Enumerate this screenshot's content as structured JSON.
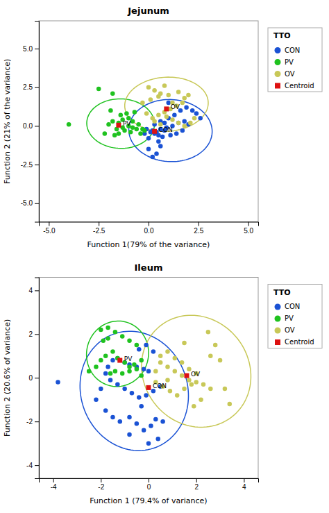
{
  "chart_data": [
    {
      "type": "scatter",
      "title": "Jejunum",
      "xlabel": "Function 1(79% of the variance)",
      "ylabel": "Function 2 (21% of the variance)",
      "xlim": [
        -5.5,
        5.5
      ],
      "ylim": [
        -6.2,
        6.8
      ],
      "xticks": [
        {
          "value": -5.0,
          "label": "-5.0"
        },
        {
          "value": -2.5,
          "label": "-2.5"
        },
        {
          "value": 0.0,
          "label": "0.0"
        },
        {
          "value": 2.5,
          "label": "2.5"
        },
        {
          "value": 5.0,
          "label": "5.0"
        }
      ],
      "yticks": [
        {
          "value": -5.0,
          "label": "-5.0"
        },
        {
          "value": -2.5,
          "label": "-2.5"
        },
        {
          "value": 0.0,
          "label": "0.0"
        },
        {
          "value": 2.5,
          "label": "2.5"
        },
        {
          "value": 5.0,
          "label": "5.0"
        }
      ],
      "grid": false,
      "legend": "right",
      "legend_title": "TTO",
      "series": [
        {
          "name": "CON",
          "color": "#1a52d4",
          "marker": "circle",
          "x": [
            0.2,
            0.4,
            0.6,
            0.3,
            0.8,
            0.5,
            0.1,
            0.9,
            1.2,
            1.5,
            1.8,
            2.0,
            1.0,
            1.3,
            1.6,
            1.9,
            2.2,
            2.4,
            0.7,
            1.1,
            -0.1,
            0.3,
            0.6,
            0.0,
            0.5,
            1.4,
            1.7,
            -0.2,
            0.8,
            1.0,
            0.4,
            0.2,
            0.0,
            0.6,
            2.6
          ],
          "values": [
            -0.3,
            -0.4,
            -0.2,
            -0.5,
            -0.3,
            -0.6,
            -0.4,
            -0.1,
            0.0,
            0.2,
            0.3,
            0.1,
            0.5,
            0.7,
            1.0,
            1.2,
            1.0,
            0.8,
            -0.7,
            -0.6,
            -0.2,
            0.1,
            0.3,
            -0.8,
            -1.0,
            -0.5,
            -0.3,
            -0.5,
            0.2,
            1.5,
            -1.8,
            -2.0,
            -1.5,
            -1.3,
            0.5
          ],
          "ellipse": {
            "cx": 1.1,
            "cy": -0.3,
            "width": 4.2,
            "height": 4.0,
            "angle": -18
          }
        },
        {
          "name": "PV",
          "color": "#1fc21f",
          "marker": "circle",
          "x": [
            -2.0,
            -1.8,
            -1.5,
            -1.3,
            -1.0,
            -0.8,
            -0.5,
            -1.6,
            -1.2,
            -0.9,
            -0.6,
            -1.4,
            -1.1,
            -0.7,
            -1.9,
            -2.2,
            -1.7,
            -0.4,
            -0.2,
            -1.3,
            -4.0,
            -2.5,
            -1.8,
            -1.5,
            -0.3,
            -1.0,
            -0.8
          ],
          "values": [
            0.1,
            0.3,
            0.2,
            0.4,
            0.5,
            0.3,
            0.1,
            -0.2,
            -0.3,
            -0.4,
            -0.2,
            0.7,
            0.8,
            0.9,
            1.0,
            -0.5,
            -0.6,
            -0.5,
            -0.3,
            -0.1,
            0.1,
            2.4,
            2.1,
            -0.5,
            -0.2,
            0.0,
            -0.1
          ],
          "ellipse": {
            "cx": -1.4,
            "cy": 0.15,
            "width": 3.4,
            "height": 3.2,
            "angle": -8
          }
        },
        {
          "name": "OV",
          "color": "#c8c858",
          "marker": "circle",
          "x": [
            0.0,
            0.3,
            0.6,
            1.0,
            1.5,
            0.8,
            0.5,
            1.2,
            1.8,
            2.0,
            0.2,
            0.5,
            0.8,
            1.1,
            1.4,
            1.7,
            0.3,
            0.6,
            -0.1,
            0.9,
            1.2,
            1.5,
            1.8,
            2.1,
            -0.3,
            0.1,
            2.3
          ],
          "values": [
            2.5,
            2.3,
            2.1,
            2.0,
            2.2,
            2.6,
            1.9,
            1.5,
            1.8,
            2.0,
            0.5,
            0.7,
            0.9,
            1.1,
            1.3,
            1.5,
            0.3,
            0.1,
            0.8,
            0.6,
            0.4,
            0.2,
            0.0,
            0.2,
            1.5,
            1.7,
            0.5
          ],
          "ellipse": {
            "cx": 0.9,
            "cy": 1.4,
            "width": 4.2,
            "height": 3.5,
            "angle": 8
          }
        },
        {
          "name": "Centroid",
          "color": "#dd1111",
          "marker": "square",
          "x": [
            0.3,
            -1.5,
            0.9
          ],
          "values": [
            -0.35,
            0.05,
            1.1
          ]
        }
      ],
      "annotations": [
        {
          "text": "CON",
          "x": 0.3,
          "y": -0.35
        },
        {
          "text": "PV",
          "x": -1.5,
          "y": 0.05
        },
        {
          "text": "OV",
          "x": 0.9,
          "y": 1.1
        }
      ]
    },
    {
      "type": "scatter",
      "title": "Ileum",
      "xlabel": "Function 1 (79.4% of variance)",
      "ylabel": "Function 2 (20.6% of variance)",
      "xlim": [
        -4.6,
        4.6
      ],
      "ylim": [
        -4.6,
        4.6
      ],
      "xticks": [
        -4,
        -2,
        0,
        2,
        4
      ],
      "yticks": [
        -4,
        -2,
        0,
        2,
        4
      ],
      "grid": false,
      "legend": "right",
      "legend_title": "TTO",
      "series": [
        {
          "name": "CON",
          "color": "#1a52d4",
          "marker": "circle",
          "x": [
            -1.5,
            -1.3,
            -1.0,
            -0.8,
            -0.5,
            -0.2,
            0.0,
            -1.8,
            -1.6,
            -1.3,
            -1.0,
            -0.7,
            -0.4,
            -0.1,
            0.2,
            0.5,
            -2.0,
            -2.2,
            -1.8,
            -1.5,
            -1.2,
            -0.8,
            -0.5,
            -0.2,
            0.1,
            0.3,
            -0.4,
            -0.1,
            0.2,
            -1.7,
            -3.8,
            0.4,
            0.0,
            -0.8,
            0.6,
            -0.3
          ],
          "values": [
            0.8,
            0.9,
            0.7,
            0.6,
            0.5,
            0.4,
            0.3,
            0.2,
            -0.1,
            -0.3,
            -0.5,
            -0.7,
            -0.9,
            -0.8,
            -0.6,
            -0.4,
            -0.5,
            -1.0,
            -1.5,
            -1.8,
            -2.0,
            -1.8,
            -2.1,
            -2.4,
            -2.2,
            -1.9,
            1.3,
            1.5,
            1.2,
            0.5,
            -0.2,
            -2.8,
            -3.0,
            -2.6,
            -2.0,
            -1.3
          ],
          "ellipse": {
            "cx": -0.6,
            "cy": -0.6,
            "width": 4.5,
            "height": 5.5,
            "angle": 12
          }
        },
        {
          "name": "PV",
          "color": "#1fc21f",
          "marker": "circle",
          "x": [
            -2.0,
            -1.8,
            -1.5,
            -1.3,
            -1.0,
            -0.8,
            -0.5,
            -1.6,
            -2.2,
            -1.9,
            -1.7,
            -1.4,
            -1.1,
            -0.8,
            -0.6,
            -0.3,
            -2.0,
            -1.7,
            -1.4,
            -1.1,
            -0.8,
            -0.5,
            -2.5,
            -0.3
          ],
          "values": [
            0.8,
            1.0,
            1.2,
            0.9,
            0.7,
            0.5,
            0.4,
            0.2,
            0.5,
            1.7,
            1.8,
            0.3,
            0.2,
            0.3,
            0.6,
            0.8,
            2.2,
            2.3,
            2.1,
            1.9,
            1.7,
            1.5,
            0.3,
            0.1
          ],
          "ellipse": {
            "cx": -1.3,
            "cy": 1.1,
            "width": 2.6,
            "height": 3.0,
            "angle": -5
          }
        },
        {
          "name": "OV",
          "color": "#c8c858",
          "marker": "circle",
          "x": [
            0.5,
            0.8,
            1.1,
            1.4,
            1.7,
            2.0,
            2.3,
            2.6,
            0.3,
            0.6,
            0.9,
            1.2,
            1.5,
            1.8,
            0.5,
            0.8,
            1.1,
            1.4,
            1.7,
            2.0,
            2.5,
            2.8,
            3.0,
            3.2,
            3.4,
            2.2,
            1.9,
            0.3,
            1.5,
            0.8,
            2.6
          ],
          "values": [
            0.7,
            0.5,
            0.3,
            0.1,
            -0.1,
            -0.2,
            -0.3,
            -0.5,
            -0.2,
            -0.4,
            -0.6,
            -0.8,
            -0.5,
            -0.3,
            1.0,
            1.2,
            0.9,
            0.7,
            0.4,
            0.2,
            2.1,
            1.5,
            0.8,
            -0.5,
            -1.2,
            -1.0,
            -1.3,
            0.3,
            1.6,
            -0.1,
            1.0
          ],
          "ellipse": {
            "cx": 2.0,
            "cy": 0.3,
            "width": 4.5,
            "height": 5.2,
            "angle": 20
          }
        },
        {
          "name": "Centroid",
          "color": "#dd1111",
          "marker": "square",
          "x": [
            0.0,
            -1.2,
            1.6
          ],
          "values": [
            -0.45,
            0.8,
            0.1
          ]
        }
      ],
      "annotations": [
        {
          "text": "CON",
          "x": 0.0,
          "y": -0.45
        },
        {
          "text": "PV",
          "x": -1.2,
          "y": 0.8
        },
        {
          "text": "OV",
          "x": 1.6,
          "y": 0.1
        }
      ]
    }
  ]
}
